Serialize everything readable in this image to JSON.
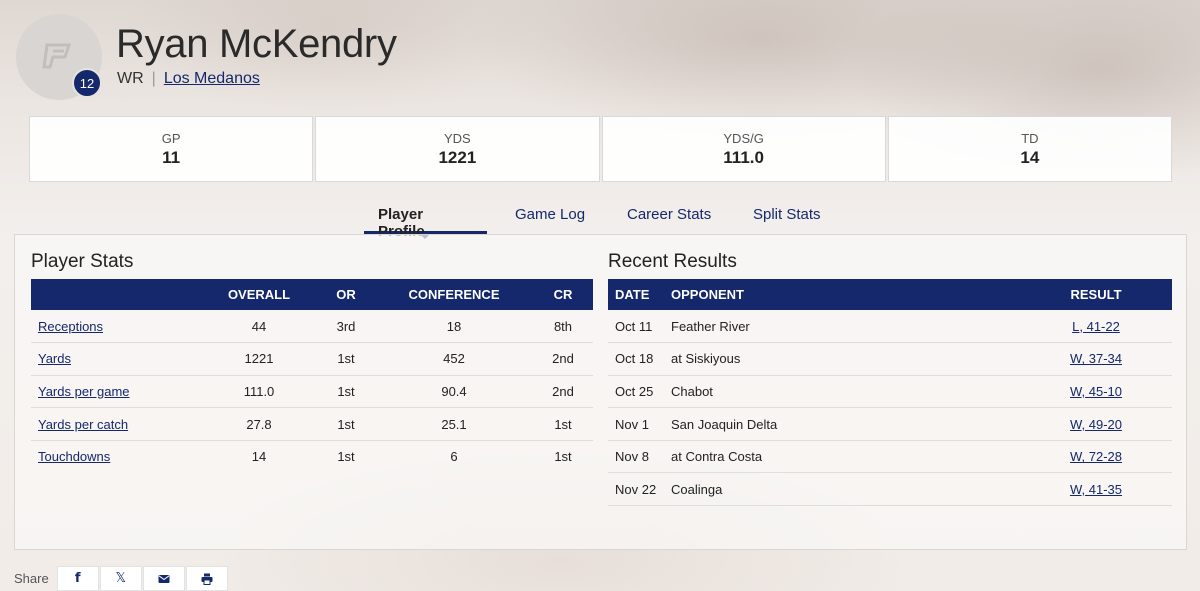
{
  "player": {
    "name": "Ryan McKendry",
    "number": "12",
    "position": "WR",
    "separator": "|",
    "school": "Los Medanos"
  },
  "summary": [
    {
      "label": "GP",
      "value": "11"
    },
    {
      "label": "YDS",
      "value": "1221"
    },
    {
      "label": "YDS/G",
      "value": "111.0"
    },
    {
      "label": "TD",
      "value": "14"
    }
  ],
  "tabs": [
    {
      "label": "Player Profile",
      "active": true
    },
    {
      "label": "Game Log",
      "active": false
    },
    {
      "label": "Career Stats",
      "active": false
    },
    {
      "label": "Split Stats",
      "active": false
    }
  ],
  "player_stats": {
    "title": "Player Stats",
    "headers": [
      "",
      "OVERALL",
      "OR",
      "CONFERENCE",
      "CR"
    ],
    "rows": [
      {
        "stat": "Receptions",
        "overall": "44",
        "or": "3rd",
        "conference": "18",
        "cr": "8th"
      },
      {
        "stat": "Yards",
        "overall": "1221",
        "or": "1st",
        "conference": "452",
        "cr": "2nd"
      },
      {
        "stat": "Yards per game",
        "overall": "111.0",
        "or": "1st",
        "conference": "90.4",
        "cr": "2nd"
      },
      {
        "stat": "Yards per catch",
        "overall": "27.8",
        "or": "1st",
        "conference": "25.1",
        "cr": "1st"
      },
      {
        "stat": "Touchdowns",
        "overall": "14",
        "or": "1st",
        "conference": "6",
        "cr": "1st"
      }
    ]
  },
  "recent_results": {
    "title": "Recent Results",
    "headers": [
      "DATE",
      "OPPONENT",
      "RESULT"
    ],
    "rows": [
      {
        "date": "Oct 11",
        "opponent": "Feather River",
        "result": "L, 41-22"
      },
      {
        "date": "Oct 18",
        "opponent": "at Siskiyous",
        "result": "W, 37-34"
      },
      {
        "date": "Oct 25",
        "opponent": "Chabot",
        "result": "W, 45-10"
      },
      {
        "date": "Nov 1",
        "opponent": "San Joaquin Delta",
        "result": "W, 49-20"
      },
      {
        "date": "Nov 8",
        "opponent": "at Contra Costa",
        "result": "W, 72-28"
      },
      {
        "date": "Nov 22",
        "opponent": "Coalinga",
        "result": "W, 41-35"
      }
    ]
  },
  "share": {
    "label": "Share",
    "buttons": [
      {
        "icon": "facebook-icon",
        "glyph": "f"
      },
      {
        "icon": "x-icon",
        "glyph": "𝕏"
      },
      {
        "icon": "email-icon",
        "glyph": ""
      },
      {
        "icon": "print-icon",
        "glyph": ""
      }
    ]
  },
  "colors": {
    "primary": "#14286b",
    "background": "#f1ece8"
  }
}
